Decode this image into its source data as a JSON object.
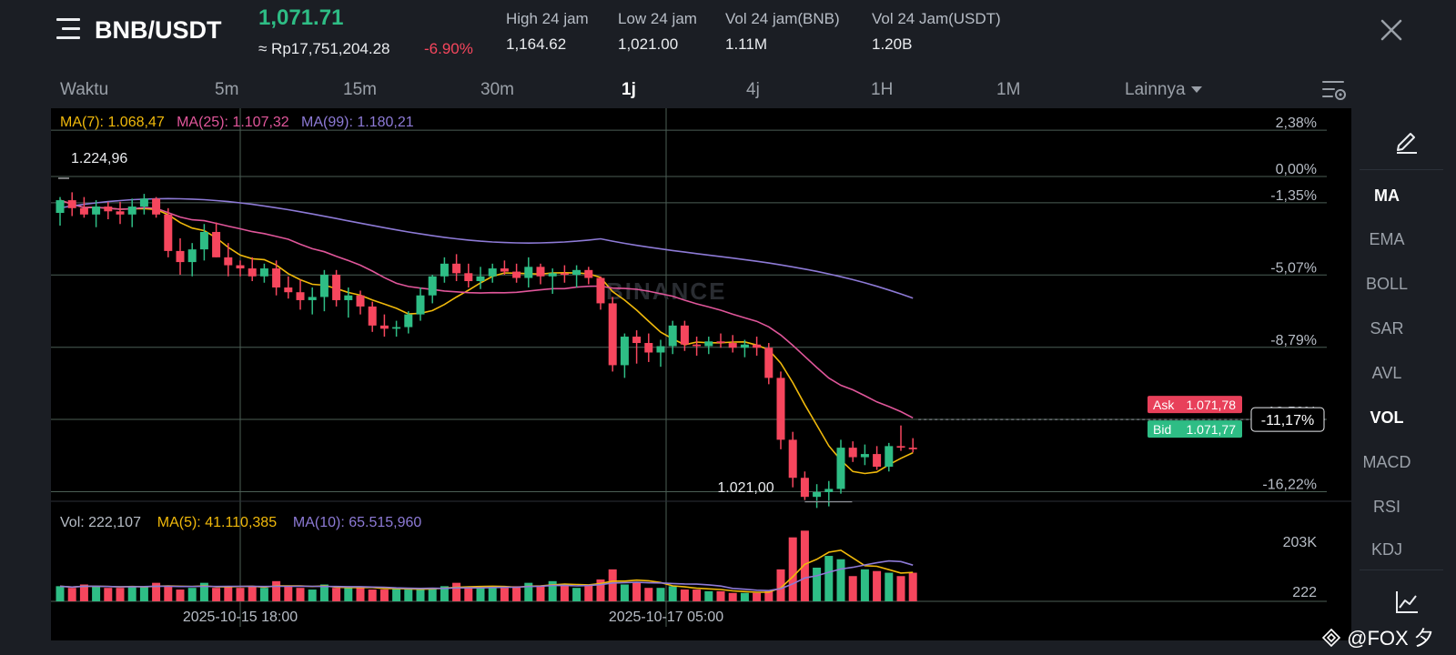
{
  "header": {
    "pair": "BNB/USDT",
    "last_price": "1,071.71",
    "fiat_price": "≈ Rp17,751,204.28",
    "change_pct": "-6.90%",
    "stats": [
      {
        "label": "High 24 jam",
        "value": "1,164.62"
      },
      {
        "label": "Low 24 jam",
        "value": "1,021.00"
      },
      {
        "label": "Vol 24 jam(BNB)",
        "value": "1.11M"
      },
      {
        "label": "Vol 24 Jam(USDT)",
        "value": "1.20B"
      }
    ]
  },
  "timeframes": [
    "Waktu",
    "5m",
    "15m",
    "30m",
    "1j",
    "4j",
    "1H",
    "1M",
    "Lainnya"
  ],
  "active_timeframe": "1j",
  "indicators": [
    "MA",
    "EMA",
    "BOLL",
    "SAR",
    "AVL",
    "VOL",
    "MACD",
    "RSI",
    "KDJ"
  ],
  "active_indicators": [
    "MA",
    "VOL"
  ],
  "chart_legend": {
    "ma7": "MA(7): 1.068,47",
    "ma25": "MA(25): 1.107,32",
    "ma99": "MA(99): 1.180,21"
  },
  "volume_legend": {
    "vol": "Vol: 222,107",
    "ma5": "MA(5): 41.110,385",
    "ma10": "MA(10): 65.515,960"
  },
  "price_axis": [
    "2,38%",
    "0,00%",
    "-1,35%",
    "-5,07%",
    "-8,79%",
    "-12,50%",
    "-16,22%"
  ],
  "volume_axis": [
    "203K",
    "222"
  ],
  "time_axis": [
    "2025-10-15 18:00",
    "2025-10-17 05:00"
  ],
  "annotations": {
    "high_marker": "1.224,96",
    "low_marker": "1.021,00",
    "current_pct": "-11,17%"
  },
  "order_book": {
    "ask_label": "Ask",
    "ask_price": "1.071,78",
    "bid_label": "Bid",
    "bid_price": "1.071,77"
  },
  "watermark": "BINANCE",
  "credit": "@FOX 夕",
  "colors": {
    "up": "#2ebd85",
    "down": "#f6465d",
    "ma7": "#f0b90b",
    "ma25": "#e0569a",
    "ma99": "#8d7ad6",
    "ask_bg": "#e8405a",
    "bid_bg": "#2ebd85"
  },
  "chart_data": {
    "type": "candlestick",
    "interval": "1j",
    "price_range": [
      1000,
      1250
    ],
    "candles": [
      {
        "o": 1202,
        "h": 1212,
        "l": 1194,
        "c": 1210
      },
      {
        "o": 1210,
        "h": 1215,
        "l": 1200,
        "c": 1205
      },
      {
        "o": 1205,
        "h": 1212,
        "l": 1199,
        "c": 1201
      },
      {
        "o": 1201,
        "h": 1210,
        "l": 1193,
        "c": 1206
      },
      {
        "o": 1206,
        "h": 1209,
        "l": 1198,
        "c": 1203
      },
      {
        "o": 1203,
        "h": 1209,
        "l": 1195,
        "c": 1201
      },
      {
        "o": 1201,
        "h": 1211,
        "l": 1193,
        "c": 1206
      },
      {
        "o": 1206,
        "h": 1214,
        "l": 1201,
        "c": 1211
      },
      {
        "o": 1211,
        "h": 1212,
        "l": 1199,
        "c": 1201
      },
      {
        "o": 1201,
        "h": 1205,
        "l": 1174,
        "c": 1178
      },
      {
        "o": 1178,
        "h": 1186,
        "l": 1163,
        "c": 1171
      },
      {
        "o": 1171,
        "h": 1183,
        "l": 1162,
        "c": 1179
      },
      {
        "o": 1179,
        "h": 1195,
        "l": 1172,
        "c": 1190
      },
      {
        "o": 1190,
        "h": 1196,
        "l": 1174,
        "c": 1174
      },
      {
        "o": 1174,
        "h": 1183,
        "l": 1162,
        "c": 1169
      },
      {
        "o": 1169,
        "h": 1172,
        "l": 1162,
        "c": 1167
      },
      {
        "o": 1167,
        "h": 1174,
        "l": 1159,
        "c": 1162
      },
      {
        "o": 1162,
        "h": 1170,
        "l": 1158,
        "c": 1167
      },
      {
        "o": 1167,
        "h": 1172,
        "l": 1150,
        "c": 1155
      },
      {
        "o": 1155,
        "h": 1162,
        "l": 1148,
        "c": 1152
      },
      {
        "o": 1152,
        "h": 1160,
        "l": 1141,
        "c": 1147
      },
      {
        "o": 1147,
        "h": 1155,
        "l": 1138,
        "c": 1149
      },
      {
        "o": 1149,
        "h": 1166,
        "l": 1140,
        "c": 1163
      },
      {
        "o": 1163,
        "h": 1166,
        "l": 1143,
        "c": 1147
      },
      {
        "o": 1147,
        "h": 1155,
        "l": 1136,
        "c": 1150
      },
      {
        "o": 1150,
        "h": 1153,
        "l": 1138,
        "c": 1143
      },
      {
        "o": 1143,
        "h": 1146,
        "l": 1127,
        "c": 1131
      },
      {
        "o": 1131,
        "h": 1138,
        "l": 1124,
        "c": 1129
      },
      {
        "o": 1129,
        "h": 1134,
        "l": 1124,
        "c": 1130
      },
      {
        "o": 1130,
        "h": 1140,
        "l": 1126,
        "c": 1138
      },
      {
        "o": 1138,
        "h": 1155,
        "l": 1134,
        "c": 1150
      },
      {
        "o": 1150,
        "h": 1163,
        "l": 1145,
        "c": 1162
      },
      {
        "o": 1162,
        "h": 1174,
        "l": 1158,
        "c": 1170
      },
      {
        "o": 1170,
        "h": 1176,
        "l": 1159,
        "c": 1164
      },
      {
        "o": 1164,
        "h": 1170,
        "l": 1155,
        "c": 1159
      },
      {
        "o": 1159,
        "h": 1168,
        "l": 1154,
        "c": 1162
      },
      {
        "o": 1162,
        "h": 1170,
        "l": 1158,
        "c": 1167
      },
      {
        "o": 1167,
        "h": 1172,
        "l": 1163,
        "c": 1165
      },
      {
        "o": 1165,
        "h": 1170,
        "l": 1158,
        "c": 1161
      },
      {
        "o": 1161,
        "h": 1174,
        "l": 1155,
        "c": 1168
      },
      {
        "o": 1168,
        "h": 1170,
        "l": 1157,
        "c": 1162
      },
      {
        "o": 1162,
        "h": 1167,
        "l": 1151,
        "c": 1164
      },
      {
        "o": 1164,
        "h": 1169,
        "l": 1158,
        "c": 1163
      },
      {
        "o": 1163,
        "h": 1169,
        "l": 1155,
        "c": 1166
      },
      {
        "o": 1166,
        "h": 1168,
        "l": 1157,
        "c": 1161
      },
      {
        "o": 1161,
        "h": 1162,
        "l": 1141,
        "c": 1145
      },
      {
        "o": 1145,
        "h": 1149,
        "l": 1102,
        "c": 1106
      },
      {
        "o": 1106,
        "h": 1126,
        "l": 1098,
        "c": 1124
      },
      {
        "o": 1124,
        "h": 1128,
        "l": 1107,
        "c": 1120
      },
      {
        "o": 1120,
        "h": 1126,
        "l": 1108,
        "c": 1114
      },
      {
        "o": 1114,
        "h": 1122,
        "l": 1105,
        "c": 1118
      },
      {
        "o": 1118,
        "h": 1134,
        "l": 1113,
        "c": 1131
      },
      {
        "o": 1131,
        "h": 1134,
        "l": 1115,
        "c": 1119
      },
      {
        "o": 1119,
        "h": 1124,
        "l": 1112,
        "c": 1118
      },
      {
        "o": 1118,
        "h": 1124,
        "l": 1113,
        "c": 1121
      },
      {
        "o": 1121,
        "h": 1126,
        "l": 1117,
        "c": 1120
      },
      {
        "o": 1120,
        "h": 1125,
        "l": 1114,
        "c": 1117
      },
      {
        "o": 1117,
        "h": 1122,
        "l": 1111,
        "c": 1119
      },
      {
        "o": 1119,
        "h": 1124,
        "l": 1112,
        "c": 1117
      },
      {
        "o": 1117,
        "h": 1120,
        "l": 1094,
        "c": 1098
      },
      {
        "o": 1098,
        "h": 1102,
        "l": 1053,
        "c": 1059
      },
      {
        "o": 1059,
        "h": 1064,
        "l": 1029,
        "c": 1035
      },
      {
        "o": 1035,
        "h": 1039,
        "l": 1021,
        "c": 1023
      },
      {
        "o": 1023,
        "h": 1031,
        "l": 1016,
        "c": 1026
      },
      {
        "o": 1026,
        "h": 1033,
        "l": 1017,
        "c": 1028
      },
      {
        "o": 1028,
        "h": 1059,
        "l": 1025,
        "c": 1054
      },
      {
        "o": 1054,
        "h": 1058,
        "l": 1045,
        "c": 1048
      },
      {
        "o": 1048,
        "h": 1056,
        "l": 1043,
        "c": 1050
      },
      {
        "o": 1050,
        "h": 1055,
        "l": 1040,
        "c": 1042
      },
      {
        "o": 1042,
        "h": 1057,
        "l": 1039,
        "c": 1055
      },
      {
        "o": 1055,
        "h": 1068,
        "l": 1052,
        "c": 1054
      },
      {
        "o": 1054,
        "h": 1060,
        "l": 1051,
        "c": 1053
      }
    ],
    "volume": [
      9,
      8,
      10,
      9,
      8,
      8,
      9,
      9,
      11,
      9,
      7,
      8,
      11,
      8,
      9,
      8,
      9,
      8,
      12,
      9,
      8,
      7,
      10,
      8,
      8,
      8,
      7,
      7,
      8,
      7,
      7,
      8,
      9,
      11,
      8,
      8,
      9,
      8,
      9,
      11,
      9,
      12,
      10,
      8,
      10,
      13,
      19,
      10,
      11,
      8,
      8,
      9,
      7,
      7,
      6,
      6,
      5,
      5,
      5,
      6,
      19,
      38,
      42,
      20,
      27,
      25,
      15,
      19,
      18,
      17,
      15,
      17
    ]
  }
}
